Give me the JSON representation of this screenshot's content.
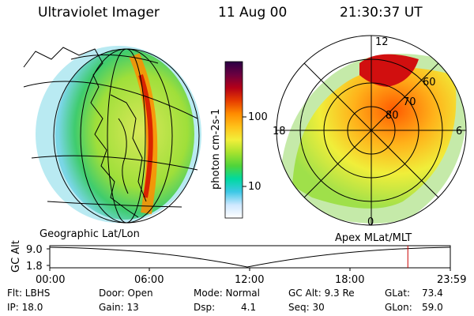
{
  "header": {
    "title": "Ultraviolet Imager",
    "date": "11 Aug 00",
    "time": "21:30:37 UT"
  },
  "colorbar": {
    "label": "photon cm-2s-1",
    "ticks": [
      "100",
      "10"
    ]
  },
  "polar": {
    "mlt_labels": [
      "12",
      "18",
      "6",
      "0"
    ],
    "lat_labels": [
      "60",
      "70",
      "80"
    ]
  },
  "left_panel_label": "Geographic Lat/Lon",
  "right_panel_label": "Apex MLat/MLT",
  "altitude_plot": {
    "ylabel": "GC Alt",
    "y_ticks": [
      "9.0",
      "1.8"
    ],
    "x_ticks": [
      "00:00",
      "06:00",
      "12:00",
      "18:00",
      "23:59"
    ],
    "current_time_fraction": 0.894
  },
  "info": {
    "flt": "Flt: LBHS",
    "ip": "IP: 18.0",
    "door": "Door: Open",
    "gain": "Gain: 13",
    "mode": "Mode: Normal",
    "dsp_label": "Dsp:",
    "dsp_value": "4.1",
    "gc_alt": "GC Alt: 9.3 Re",
    "seq": "Seq: 30",
    "glat_label": "GLat:",
    "glat_value": "73.4",
    "glon_label": "GLon:",
    "glon_value": "59.0"
  },
  "colors": {
    "colorbar": [
      "#ffffff",
      "#cfe8ff",
      "#3ec8e6",
      "#00d9a0",
      "#4fd43a",
      "#a6e22e",
      "#f2ef3a",
      "#ffc21a",
      "#ff8c00",
      "#e63c00",
      "#b40018",
      "#6b0040",
      "#2a0045"
    ],
    "current_time_marker": "#cc0000"
  }
}
